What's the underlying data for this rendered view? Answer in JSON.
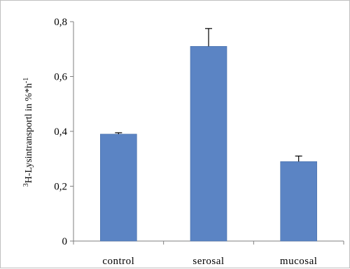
{
  "chart_data": {
    "type": "bar",
    "categories": [
      "control",
      "serosal",
      "mucosal"
    ],
    "values": [
      0.39,
      0.71,
      0.29
    ],
    "errors": [
      0.005,
      0.065,
      0.02
    ],
    "title": "",
    "xlabel": "",
    "ylabel_prefix": "3",
    "ylabel_main": "H-Lysintransportl in %*h",
    "ylabel_exp": "-1",
    "ylim": [
      0,
      0.8
    ],
    "yticks": [
      0,
      0.2,
      0.4,
      0.6,
      0.8
    ],
    "ytick_labels": [
      "0",
      "0,2",
      "0,4",
      "0,6",
      "0,8"
    ],
    "grid": false,
    "legend": "none",
    "bar_color": "#5b84c4",
    "bar_edge_color": "#4a70aa"
  }
}
